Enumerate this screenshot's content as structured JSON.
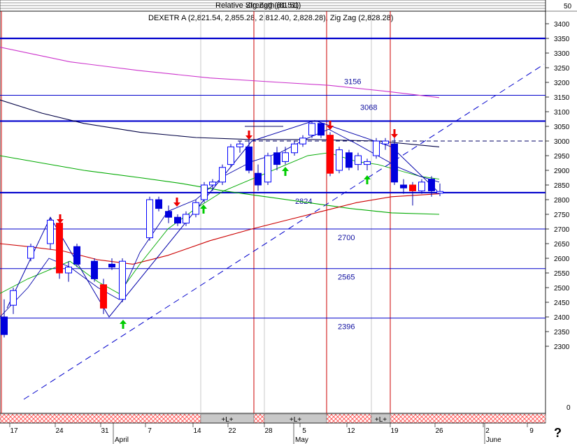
{
  "header": {
    "legend_text": "DEXETR A (2,821.54, 2,855.28, 2,812.40, 2,828.28), Zig Zag (2,828.28)",
    "overlap_text": "Relative Strength (81.51)",
    "overlap_text2": "Zig Zag (81.51)"
  },
  "colors": {
    "background": "#ffffff",
    "bull_candle_border": "#0000ff",
    "bull_candle_fill": "#ffffff",
    "bear_candle_blue": "#0000dd",
    "bear_candle_red": "#ff0000",
    "level_line": "#0000cc",
    "ma_magenta": "#cc33cc",
    "ma_navy": "#000044",
    "ma_green": "#00aa00",
    "ma_red": "#cc0000",
    "trendline": "#0000cc",
    "vertical_marker": "#cc0000",
    "down_arrow": "#ee0000",
    "up_arrow": "#00cc00"
  },
  "help": {
    "label": "?"
  },
  "chart_data": {
    "type": "candlestick",
    "y_axis": {
      "side": "right",
      "range": [
        2210,
        3470
      ],
      "ticks": [
        2300,
        2350,
        2400,
        2450,
        2500,
        2550,
        2600,
        2650,
        2700,
        2750,
        2800,
        2850,
        2900,
        2950,
        3000,
        3050,
        3100,
        3150,
        3200,
        3250,
        3300,
        3350,
        3400
      ],
      "extra_labels": [
        "50",
        "0"
      ]
    },
    "x_axis": {
      "day_labels": [
        "17",
        "24",
        "31",
        "7",
        "14",
        "22",
        "28",
        "5",
        "12",
        "19",
        "26",
        "2",
        "9"
      ],
      "month_labels": [
        "April",
        "May",
        "June"
      ]
    },
    "horizontal_levels": [
      {
        "value": 3350,
        "label": "",
        "bold": true
      },
      {
        "value": 3156,
        "label": "3156",
        "bold": false
      },
      {
        "value": 3068,
        "label": "3068",
        "bold": true
      },
      {
        "value": 3000,
        "label": "",
        "dashed": true
      },
      {
        "value": 2824,
        "label": "2824",
        "bold": true
      },
      {
        "value": 2700,
        "label": "2700",
        "bold": false
      },
      {
        "value": 2565,
        "label": "2565",
        "bold": false
      },
      {
        "value": 2396,
        "label": "2396",
        "bold": false
      }
    ],
    "candles": [
      {
        "o": 2400,
        "h": 2460,
        "l": 2330,
        "c": 2340
      },
      {
        "o": 2440,
        "h": 2500,
        "l": 2410,
        "c": 2490
      },
      {
        "o": 2600,
        "h": 2650,
        "l": 2590,
        "c": 2640
      },
      {
        "o": 2650,
        "h": 2740,
        "l": 2630,
        "c": 2730
      },
      {
        "o": 2720,
        "h": 2740,
        "l": 2530,
        "c": 2550
      },
      {
        "o": 2550,
        "h": 2590,
        "l": 2520,
        "c": 2570
      },
      {
        "o": 2640,
        "h": 2650,
        "l": 2570,
        "c": 2580
      },
      {
        "o": 2590,
        "h": 2600,
        "l": 2520,
        "c": 2530
      },
      {
        "o": 2510,
        "h": 2530,
        "l": 2410,
        "c": 2430
      },
      {
        "o": 2580,
        "h": 2600,
        "l": 2560,
        "c": 2570
      },
      {
        "o": 2460,
        "h": 2600,
        "l": 2450,
        "c": 2590
      },
      {
        "o": 2670,
        "h": 2810,
        "l": 2660,
        "c": 2800
      },
      {
        "o": 2800,
        "h": 2810,
        "l": 2760,
        "c": 2770
      },
      {
        "o": 2760,
        "h": 2780,
        "l": 2720,
        "c": 2740
      },
      {
        "o": 2740,
        "h": 2750,
        "l": 2710,
        "c": 2720
      },
      {
        "o": 2720,
        "h": 2760,
        "l": 2710,
        "c": 2750
      },
      {
        "o": 2750,
        "h": 2800,
        "l": 2740,
        "c": 2790
      },
      {
        "o": 2800,
        "h": 2860,
        "l": 2790,
        "c": 2850
      },
      {
        "o": 2850,
        "h": 2870,
        "l": 2830,
        "c": 2860
      },
      {
        "o": 2860,
        "h": 2920,
        "l": 2850,
        "c": 2910
      },
      {
        "o": 2920,
        "h": 2990,
        "l": 2910,
        "c": 2980
      },
      {
        "o": 2980,
        "h": 3000,
        "l": 2960,
        "c": 2990
      },
      {
        "o": 2980,
        "h": 3010,
        "l": 2890,
        "c": 2900
      },
      {
        "o": 2890,
        "h": 2920,
        "l": 2830,
        "c": 2850
      },
      {
        "o": 2860,
        "h": 2960,
        "l": 2850,
        "c": 2950
      },
      {
        "o": 2960,
        "h": 2980,
        "l": 2900,
        "c": 2920
      },
      {
        "o": 2930,
        "h": 2980,
        "l": 2920,
        "c": 2960
      },
      {
        "o": 2960,
        "h": 3000,
        "l": 2950,
        "c": 2990
      },
      {
        "o": 2990,
        "h": 3020,
        "l": 2980,
        "c": 3010
      },
      {
        "o": 3020,
        "h": 3070,
        "l": 3010,
        "c": 3060
      },
      {
        "o": 3060,
        "h": 3060,
        "l": 3010,
        "c": 3020
      },
      {
        "o": 3020,
        "h": 3030,
        "l": 2880,
        "c": 2890
      },
      {
        "o": 2900,
        "h": 2980,
        "l": 2890,
        "c": 2970
      },
      {
        "o": 2960,
        "h": 2970,
        "l": 2900,
        "c": 2910
      },
      {
        "o": 2920,
        "h": 2960,
        "l": 2900,
        "c": 2950
      },
      {
        "o": 2920,
        "h": 2940,
        "l": 2900,
        "c": 2930
      },
      {
        "o": 2950,
        "h": 3010,
        "l": 2940,
        "c": 3000
      },
      {
        "o": 2990,
        "h": 3010,
        "l": 2970,
        "c": 3000
      },
      {
        "o": 2990,
        "h": 3010,
        "l": 2850,
        "c": 2860
      },
      {
        "o": 2850,
        "h": 2870,
        "l": 2820,
        "c": 2840
      },
      {
        "o": 2850,
        "h": 2860,
        "l": 2780,
        "c": 2830
      },
      {
        "o": 2830,
        "h": 2870,
        "l": 2820,
        "c": 2860
      },
      {
        "o": 2870,
        "h": 2880,
        "l": 2810,
        "c": 2830
      },
      {
        "o": 2822,
        "h": 2855,
        "l": 2812,
        "c": 2828
      }
    ],
    "down_arrows": [
      8,
      18,
      33,
      44,
      55,
      73
    ],
    "up_arrows": [
      10,
      22,
      48,
      68
    ],
    "vertical_red_markers": [
      16,
      52,
      68,
      76
    ],
    "bottom_bar": [
      {
        "label": "",
        "pattern": "hatch"
      },
      {
        "label": "+L+",
        "pattern": "gray"
      },
      {
        "label": "",
        "pattern": "hatch"
      },
      {
        "label": "+L+",
        "pattern": "gray"
      },
      {
        "label": "",
        "pattern": "hatch"
      },
      {
        "label": "+L+",
        "pattern": "gray"
      },
      {
        "label": "",
        "pattern": "hatch"
      }
    ]
  }
}
